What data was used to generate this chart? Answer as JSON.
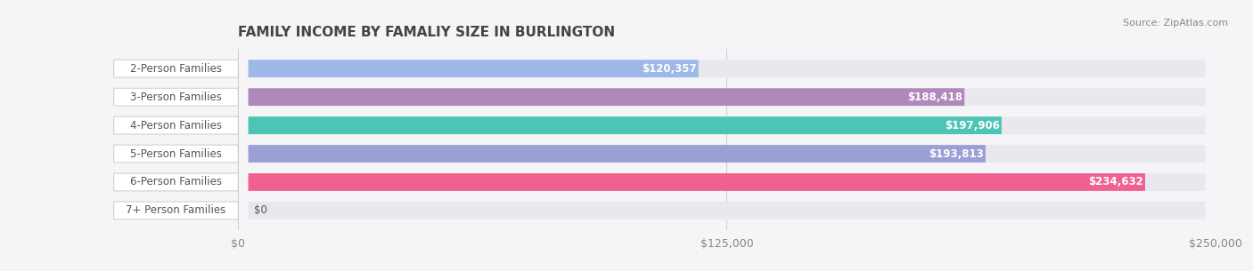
{
  "title": "FAMILY INCOME BY FAMALIY SIZE IN BURLINGTON",
  "source": "Source: ZipAtlas.com",
  "categories": [
    "2-Person Families",
    "3-Person Families",
    "4-Person Families",
    "5-Person Families",
    "6-Person Families",
    "7+ Person Families"
  ],
  "values": [
    120357,
    188418,
    197906,
    193813,
    234632,
    0
  ],
  "bar_colors": [
    "#9eb8e8",
    "#b088bb",
    "#4dc5b5",
    "#9b9fd4",
    "#f06090",
    "#f5c9a0"
  ],
  "track_color": "#e8e8ee",
  "label_text_color": "#555555",
  "value_text_color_inside": "#ffffff",
  "value_text_color_outside": "#555555",
  "xlim": [
    0,
    250000
  ],
  "xticks": [
    0,
    125000,
    250000
  ],
  "xtick_labels": [
    "$0",
    "$125,000",
    "$250,000"
  ],
  "background_color": "#f5f5f8",
  "bar_height": 0.62,
  "title_fontsize": 11,
  "label_fontsize": 8.5,
  "value_fontsize": 8.5,
  "source_fontsize": 8
}
